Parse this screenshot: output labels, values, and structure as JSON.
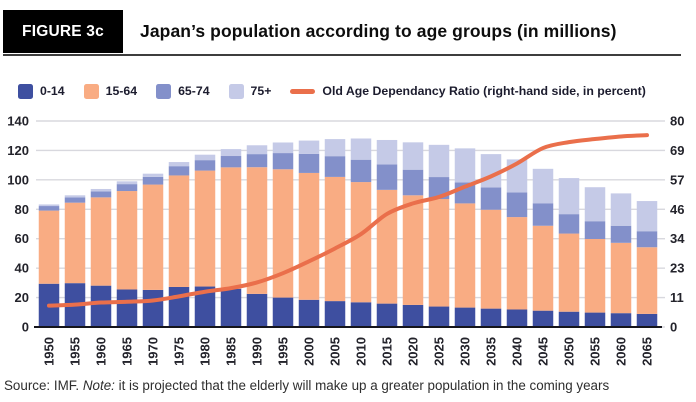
{
  "header": {
    "figure_label": "FIGURE 3c",
    "title": "Japan’s population according to age groups (in millions)"
  },
  "legend": [
    {
      "label": "0-14",
      "color": "#3E4FA0",
      "type": "swatch"
    },
    {
      "label": "15-64",
      "color": "#F9AC83",
      "type": "swatch"
    },
    {
      "label": "65-74",
      "color": "#8390CA",
      "type": "swatch"
    },
    {
      "label": "75+",
      "color": "#C5CAE7",
      "type": "swatch"
    },
    {
      "label": "Old Age Dependancy Ratio (right-hand side, in percent)",
      "color": "#EA6F4B",
      "type": "line"
    }
  ],
  "chart_data": {
    "type": "bar",
    "stacked": true,
    "title": "Japan’s population according to age groups (in millions)",
    "categories": [
      "1950",
      "1955",
      "1960",
      "1965",
      "1970",
      "1975",
      "1980",
      "1985",
      "1990",
      "1995",
      "2000",
      "2005",
      "2010",
      "2015",
      "2020",
      "2025",
      "2030",
      "2035",
      "2040",
      "2045",
      "2050",
      "2055",
      "2060",
      "2065"
    ],
    "series": [
      {
        "name": "0-14",
        "color": "#3E4FA0",
        "values": [
          29.4,
          29.8,
          28.1,
          25.5,
          25.2,
          27.2,
          27.5,
          26.0,
          22.5,
          20.0,
          18.5,
          17.6,
          16.8,
          15.9,
          15.0,
          13.9,
          13.2,
          12.5,
          11.9,
          11.1,
          10.4,
          9.8,
          9.4,
          8.9
        ]
      },
      {
        "name": "15-64",
        "color": "#F9AC83",
        "values": [
          49.7,
          54.7,
          60.0,
          66.9,
          71.6,
          75.8,
          78.8,
          82.5,
          86.1,
          87.2,
          86.2,
          84.4,
          81.7,
          77.3,
          74.5,
          73.1,
          70.8,
          67.2,
          62.8,
          57.7,
          53.1,
          50.0,
          47.8,
          45.3
        ]
      },
      {
        "name": "65-74",
        "color": "#8390CA",
        "values": [
          3.1,
          3.6,
          4.1,
          4.7,
          5.2,
          6.3,
          7.1,
          7.7,
          8.9,
          11.0,
          13.0,
          14.1,
          15.2,
          17.3,
          17.4,
          14.9,
          14.3,
          15.2,
          16.8,
          15.3,
          13.2,
          12.1,
          11.6,
          10.9
        ]
      },
      {
        "name": "75+",
        "color": "#C5CAE7",
        "values": [
          1.1,
          1.4,
          1.6,
          1.9,
          2.2,
          2.8,
          3.7,
          4.7,
          6.0,
          7.2,
          9.0,
          11.6,
          14.4,
          16.6,
          18.6,
          21.9,
          23.1,
          22.6,
          22.4,
          23.4,
          24.5,
          23.1,
          22.0,
          20.5
        ]
      }
    ],
    "line_series": {
      "name": "Old Age Dependancy Ratio (right-hand side, in percent)",
      "color": "#EA6F4B",
      "values": [
        8.3,
        8.7,
        9.5,
        9.8,
        10.3,
        11.9,
        13.7,
        15.1,
        17.3,
        20.9,
        25.5,
        30.5,
        36.1,
        43.9,
        48.0,
        50.5,
        54.5,
        58.5,
        63.5,
        69.5,
        71.8,
        73.0,
        74.0,
        74.5
      ]
    },
    "left_axis": {
      "range": [
        0,
        140
      ],
      "ticks": [
        0,
        20,
        40,
        60,
        80,
        100,
        120,
        140
      ]
    },
    "right_axis": {
      "range": [
        0,
        80
      ],
      "ticks": [
        0,
        11,
        23,
        34,
        46,
        57,
        69,
        80
      ],
      "unit": "percent"
    },
    "grid": true,
    "legend_position": "top",
    "colors": {
      "grid": "#D8D8DE",
      "axis": "#15151C",
      "tick_text": "#23232B"
    }
  },
  "footer": {
    "source_prefix": "Source: IMF. ",
    "note_label": "Note:",
    "note_text": " it is projected that the elderly will make up a greater population in the coming years"
  }
}
